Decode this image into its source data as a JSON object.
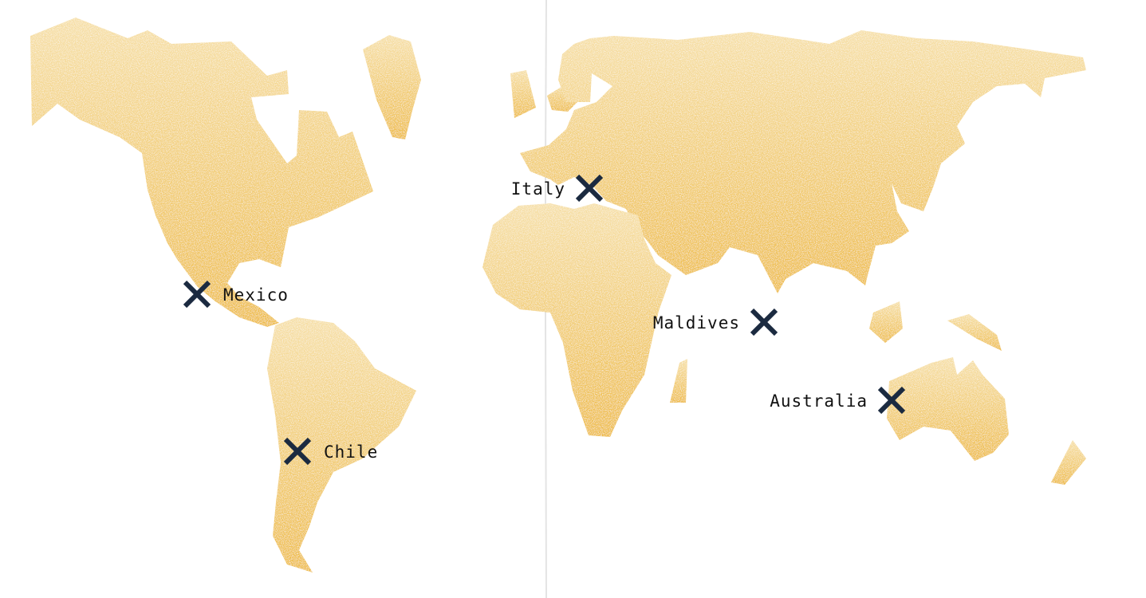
{
  "map": {
    "colors": {
      "land_top": "#f6dfa6",
      "land_bottom": "#eebc45",
      "marker": "#1b2a40",
      "label": "#111111",
      "divider": "#e4e4e4"
    },
    "markers": [
      {
        "id": "mexico",
        "label": "Mexico",
        "icon": "x-mark-icon"
      },
      {
        "id": "chile",
        "label": "Chile",
        "icon": "x-mark-icon"
      },
      {
        "id": "italy",
        "label": "Italy",
        "icon": "x-mark-icon"
      },
      {
        "id": "maldives",
        "label": "Maldives",
        "icon": "x-mark-icon"
      },
      {
        "id": "australia",
        "label": "Australia",
        "icon": "x-mark-icon"
      }
    ]
  }
}
